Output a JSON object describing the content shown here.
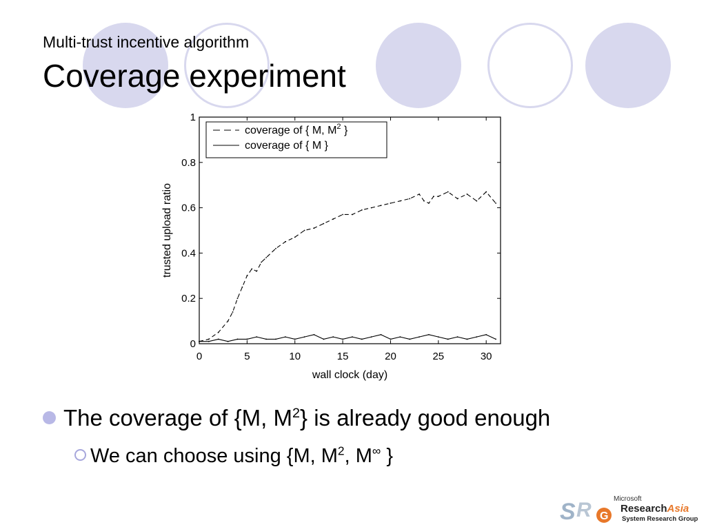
{
  "slide": {
    "subtitle": "Multi-trust incentive algorithm",
    "title": "Coverage experiment",
    "decor_color": "#d8d8ee"
  },
  "bullets": [
    {
      "pre": "The coverage of {M, M",
      "sup": "2",
      "post": "} is already good enough"
    },
    {
      "pre": "We can choose using {M, M",
      "sup": "2",
      "mid": ", M",
      "sup2": "∞",
      "post": " }"
    }
  ],
  "chart_data": {
    "type": "line",
    "xlabel": "wall clock (day)",
    "ylabel": "trusted upload ratio",
    "xlim": [
      0,
      31.5
    ],
    "ylim": [
      0,
      1
    ],
    "xticks": [
      "0",
      "5",
      "10",
      "15",
      "20",
      "25",
      "30"
    ],
    "yticks": [
      "0",
      "0.2",
      "0.4",
      "0.6",
      "0.8",
      "1"
    ],
    "legend_placement": "top-left",
    "grid": false,
    "series": [
      {
        "name": "coverage of { M, M2 }",
        "legend_label": "coverage of { M, M",
        "legend_sup": "2",
        "legend_post": " }",
        "style": "dashed",
        "x": [
          0,
          1,
          2,
          3,
          3.5,
          4,
          4.5,
          5,
          5.5,
          6,
          6.5,
          7,
          8,
          9,
          10,
          11,
          12,
          13,
          14,
          15,
          16,
          17,
          18,
          19,
          20,
          21,
          22,
          23,
          23.5,
          24,
          24.5,
          25,
          26,
          27,
          28,
          29,
          30,
          31
        ],
        "y": [
          0.01,
          0.02,
          0.05,
          0.1,
          0.14,
          0.2,
          0.25,
          0.3,
          0.33,
          0.32,
          0.36,
          0.38,
          0.42,
          0.45,
          0.47,
          0.5,
          0.51,
          0.53,
          0.55,
          0.57,
          0.57,
          0.59,
          0.6,
          0.61,
          0.62,
          0.63,
          0.64,
          0.66,
          0.63,
          0.62,
          0.65,
          0.65,
          0.67,
          0.64,
          0.66,
          0.63,
          0.67,
          0.62
        ]
      },
      {
        "name": "coverage of { M }",
        "legend_label": "coverage of { M }",
        "style": "solid",
        "x": [
          0,
          1,
          2,
          3,
          4,
          5,
          6,
          7,
          8,
          9,
          10,
          11,
          12,
          13,
          14,
          15,
          16,
          17,
          18,
          19,
          20,
          21,
          22,
          23,
          24,
          25,
          26,
          27,
          28,
          29,
          30,
          31
        ],
        "y": [
          0.01,
          0.01,
          0.02,
          0.01,
          0.02,
          0.02,
          0.03,
          0.02,
          0.02,
          0.03,
          0.02,
          0.03,
          0.04,
          0.02,
          0.03,
          0.02,
          0.03,
          0.02,
          0.03,
          0.04,
          0.02,
          0.03,
          0.02,
          0.03,
          0.04,
          0.03,
          0.02,
          0.03,
          0.02,
          0.03,
          0.04,
          0.02
        ]
      }
    ]
  },
  "logo": {
    "top": "Microsoft",
    "name_a": "Research",
    "name_b": "Asia",
    "sub": "System Research Group"
  }
}
